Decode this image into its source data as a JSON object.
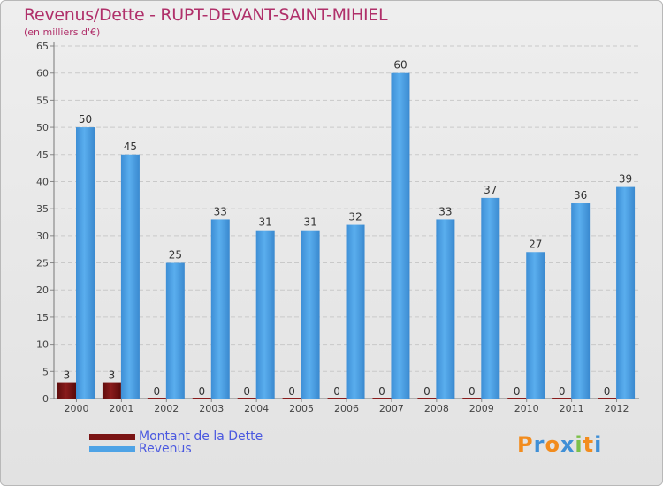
{
  "chart_data": {
    "type": "bar",
    "title": "Revenus/Dette - RUPT-DEVANT-SAINT-MIHIEL",
    "subtitle": "(en milliers d'€)",
    "categories": [
      "2000",
      "2001",
      "2002",
      "2003",
      "2004",
      "2005",
      "2006",
      "2007",
      "2008",
      "2009",
      "2010",
      "2011",
      "2012"
    ],
    "series": [
      {
        "name": "Montant de la Dette",
        "color": "#7a1414",
        "values": [
          3,
          3,
          0,
          0,
          0,
          0,
          0,
          0,
          0,
          0,
          0,
          0,
          0
        ]
      },
      {
        "name": "Revenus",
        "color": "#4ea3e6",
        "values": [
          50,
          45,
          25,
          33,
          31,
          31,
          32,
          60,
          33,
          37,
          27,
          36,
          39
        ]
      }
    ],
    "yticks": [
      0,
      5,
      10,
      15,
      20,
      25,
      30,
      35,
      40,
      45,
      50,
      55,
      60,
      65
    ],
    "ylim": [
      0,
      65
    ],
    "grid": true,
    "legend_position": "bottom-left"
  },
  "logo": {
    "letters": [
      "P",
      "r",
      "o",
      "x",
      "i",
      "t",
      "i"
    ],
    "colors": [
      "#f28c1e",
      "#3f8fd6",
      "#f28c1e",
      "#3f8fd6",
      "#7cc04a",
      "#f28c1e",
      "#3f8fd6"
    ]
  }
}
